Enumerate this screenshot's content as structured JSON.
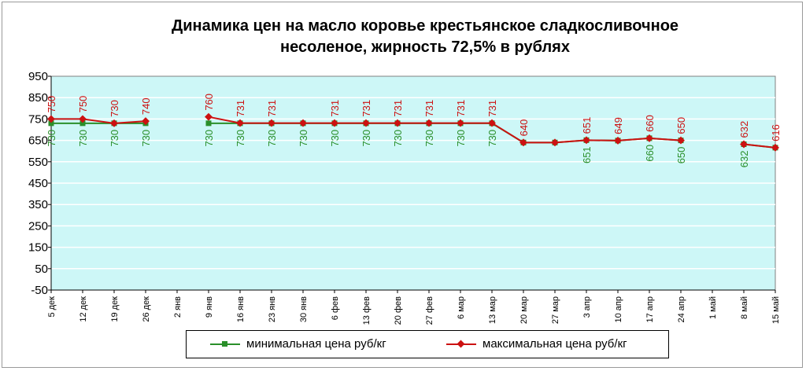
{
  "colors": {
    "plot_bg": "#cdf7f7",
    "min_series": "#2a8f2a",
    "max_series": "#cc1111",
    "grid": "#ffffff"
  },
  "chart_data": {
    "type": "line",
    "title_lines": [
      "Динамика цен на масло коровье крестьянское  сладкосливочное",
      "несоленое, жирность 72,5%  в рублях"
    ],
    "xlabel": "",
    "ylabel": "",
    "ylim": [
      -50,
      950
    ],
    "yticks": [
      950,
      850,
      750,
      650,
      550,
      450,
      350,
      250,
      150,
      50,
      -50
    ],
    "grid": true,
    "legend_position": "bottom",
    "categories": [
      "5 дек",
      "12 дек",
      "19 дек",
      "26 дек",
      "2 янв",
      "9 янв",
      "16 янв",
      "23 янв",
      "30 янв",
      "6 фев",
      "13 фев",
      "20 фев",
      "27 фев",
      "6 мар",
      "13 мар",
      "20 мар",
      "27 мар",
      "3 апр",
      "10 апр",
      "17 апр",
      "24 апр",
      "1 май",
      "8 май",
      "15 май"
    ],
    "series": [
      {
        "name": "минимальная цена руб/кг",
        "values": [
          730,
          730,
          730,
          730,
          null,
          730,
          730,
          730,
          730,
          730,
          730,
          730,
          730,
          730,
          730,
          640,
          640,
          651,
          649,
          660,
          650,
          null,
          632,
          616
        ],
        "labels": [
          "730",
          "730",
          "730",
          "730",
          "",
          "730",
          "730",
          "730",
          "730",
          "730",
          "730",
          "730",
          "730",
          "730",
          "730",
          "",
          "",
          "651",
          "",
          "660",
          "650",
          "",
          "632",
          ""
        ]
      },
      {
        "name": "максимальная цена руб/кг",
        "values": [
          750,
          750,
          730,
          740,
          null,
          760,
          731,
          731,
          731,
          731,
          731,
          731,
          731,
          731,
          731,
          640,
          640,
          651,
          649,
          660,
          650,
          null,
          632,
          616
        ],
        "labels": [
          "750",
          "750",
          "730",
          "740",
          "",
          "760",
          "731",
          "731",
          "",
          "731",
          "731",
          "731",
          "731",
          "731",
          "731",
          "640",
          "",
          "651",
          "649",
          "660",
          "650",
          "",
          "632",
          "616"
        ]
      }
    ]
  }
}
